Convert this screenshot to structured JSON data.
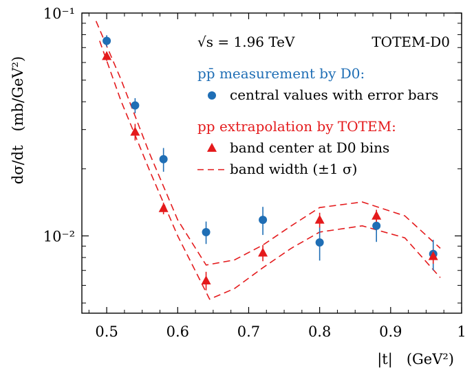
{
  "chart_data": {
    "type": "scatter",
    "xlabel": "|t|   (GeV²)",
    "ylabel": "dσ/dt   (mb/GeV²)",
    "xlim": [
      0.465,
      1.0
    ],
    "ylim": [
      0.0045,
      0.1
    ],
    "yscale": "log",
    "grid": false,
    "x_ticks": [
      0.5,
      0.6,
      0.7,
      0.8,
      0.9,
      1.0
    ],
    "x_tick_labels": [
      "0.5",
      "0.6",
      "0.7",
      "0.8",
      "0.9",
      "1"
    ],
    "y_major_ticks": [
      0.01,
      0.1
    ],
    "y_tick_labels": [
      "10⁻²",
      "10⁻¹"
    ],
    "annotations": {
      "energy": "√s = 1.96 TeV",
      "experiment": "TOTEM-D0"
    },
    "legend": {
      "placement": "top-right",
      "d0_header": "pp̄ measurement by D0:",
      "d0_entry": "central values with error bars",
      "totem_header": "pp extrapolation by TOTEM:",
      "totem_center_entry": "band center at D0 bins",
      "totem_band_entry": "band width (±1 σ)"
    },
    "colors": {
      "d0": "#1f6eb5",
      "totem": "#e41a1c"
    },
    "series": [
      {
        "name": "central values with error bars",
        "marker": "circle",
        "x": [
          0.5,
          0.54,
          0.58,
          0.64,
          0.72,
          0.8,
          0.88,
          0.96
        ],
        "y": [
          0.075,
          0.0385,
          0.0221,
          0.0104,
          0.0118,
          0.00935,
          0.0111,
          0.0083
        ],
        "yerr_low": [
          0.0045,
          0.003,
          0.0027,
          0.0012,
          0.0017,
          0.0016,
          0.0017,
          0.0013
        ],
        "yerr_high": [
          0.0045,
          0.003,
          0.0027,
          0.0012,
          0.0017,
          0.0016,
          0.0017,
          0.0013
        ]
      },
      {
        "name": "band center at D0 bins",
        "marker": "triangle",
        "x": [
          0.5,
          0.54,
          0.58,
          0.64,
          0.72,
          0.8,
          0.88,
          0.96
        ],
        "y": [
          0.064,
          0.0293,
          0.0133,
          0.0063,
          0.0084,
          0.0118,
          0.0123,
          0.0081
        ],
        "yerr_low": [
          0.003,
          0.0025,
          0.0008,
          0.0006,
          0.0007,
          0.0009,
          0.0008,
          0.0006
        ],
        "yerr_high": [
          0.003,
          0.0025,
          0.0008,
          0.0006,
          0.0007,
          0.0009,
          0.0008,
          0.0006
        ]
      },
      {
        "name": "band width upper",
        "style": "dashed",
        "x": [
          0.485,
          0.52,
          0.56,
          0.6,
          0.64,
          0.68,
          0.72,
          0.76,
          0.8,
          0.86,
          0.92,
          0.97
        ],
        "y": [
          0.092,
          0.0505,
          0.0236,
          0.0118,
          0.0074,
          0.0078,
          0.0091,
          0.0111,
          0.0134,
          0.0142,
          0.0123,
          0.0088
        ]
      },
      {
        "name": "band width lower",
        "style": "dashed",
        "x": [
          0.49,
          0.52,
          0.56,
          0.6,
          0.645,
          0.68,
          0.72,
          0.76,
          0.8,
          0.86,
          0.92,
          0.97
        ],
        "y": [
          0.075,
          0.0405,
          0.0198,
          0.01,
          0.0052,
          0.0058,
          0.0072,
          0.0088,
          0.0104,
          0.0111,
          0.0098,
          0.0065
        ]
      }
    ]
  }
}
